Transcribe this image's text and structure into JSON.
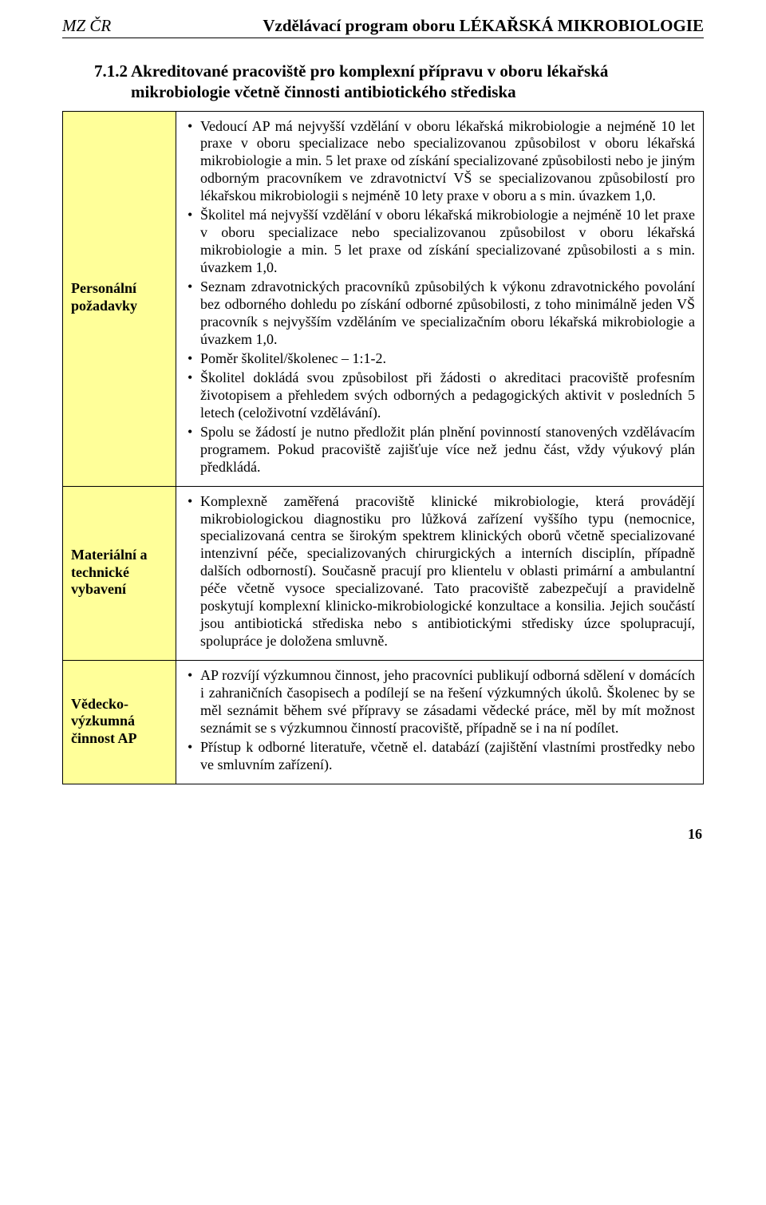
{
  "header": {
    "left": "MZ ČR",
    "right": "Vzdělávací program oboru LÉKAŘSKÁ MIKROBIOLOGIE"
  },
  "section": {
    "number": "7.1.2",
    "title": "Akreditované pracoviště pro komplexní přípravu v oboru lékařská mikrobiologie včetně činnosti antibiotického střediska"
  },
  "rows": [
    {
      "label": "Personální požadavky",
      "bullets": [
        "Vedoucí AP má nejvyšší vzdělání v oboru lékařská mikrobiologie a nejméně 10 let praxe v oboru specializace nebo specializovanou způsobilost v oboru lékařská mikrobiologie a min. 5 let praxe od získání specializované způsobilosti nebo je jiným odborným pracovníkem ve zdravotnictví VŠ se specializovanou způsobilostí pro lékařskou mikrobiologii s nejméně 10 lety praxe v oboru a s min. úvazkem 1,0.",
        "Školitel má nejvyšší vzdělání v oboru lékařská mikrobiologie a nejméně 10 let praxe v oboru specializace nebo specializovanou způsobilost v oboru lékařská mikrobiologie a min. 5 let praxe od získání specializované způsobilosti a s min. úvazkem 1,0.",
        "Seznam zdravotnických pracovníků způsobilých k výkonu zdravotnického povolání bez odborného dohledu po získání odborné způsobilosti, z toho minimálně jeden VŠ pracovník s nejvyšším vzděláním ve specializačním oboru lékařská mikrobiologie a úvazkem 1,0.",
        "Poměr školitel/školenec – 1:1-2.",
        "Školitel dokládá svou způsobilost při žádosti o akreditaci pracoviště profesním životopisem a přehledem svých odborných a pedagogických aktivit v posledních 5 letech (celoživotní vzdělávání).",
        "Spolu se žádostí je nutno předložit plán plnění povinností stanovených vzdělávacím programem. Pokud pracoviště zajišťuje více než jednu část, vždy výukový plán předkládá."
      ]
    },
    {
      "label": "Materiální a technické vybavení",
      "bullets": [
        "Komplexně zaměřená pracoviště klinické mikrobiologie, která provádějí mikrobiologickou diagnostiku pro lůžková zařízení vyššího typu (nemocnice, specializovaná centra se širokým spektrem klinických oborů včetně specializované intenzivní péče, specializovaných chirurgických a interních disciplín, případně dalších odborností). Současně pracují pro klientelu v oblasti primární a ambulantní péče včetně vysoce specializované. Tato pracoviště zabezpečují a pravidelně poskytují komplexní klinicko-mikrobiologické konzultace a konsilia. Jejich součástí jsou antibiotická střediska nebo s antibiotickými středisky úzce spolupracují, spolupráce je doložena smluvně."
      ]
    },
    {
      "label": "Vědecko-výzkumná činnost AP",
      "bullets": [
        "AP rozvíjí výzkumnou činnost, jeho pracovníci publikují odborná sdělení v domácích i zahraničních časopisech a podílejí se na řešení výzkumných úkolů. Školenec by se měl seznámit během své přípravy se zásadami vědecké práce, měl by mít možnost seznámit se s výzkumnou činností pracoviště, případně se i na ní podílet.",
        "Přístup k odborné literatuře, včetně el. databází (zajištění vlastními prostředky nebo ve smluvním zařízení)."
      ]
    }
  ],
  "page_number": "16",
  "colors": {
    "label_bg": "#ffff99",
    "border": "#000000",
    "text": "#000000",
    "page_bg": "#ffffff"
  }
}
